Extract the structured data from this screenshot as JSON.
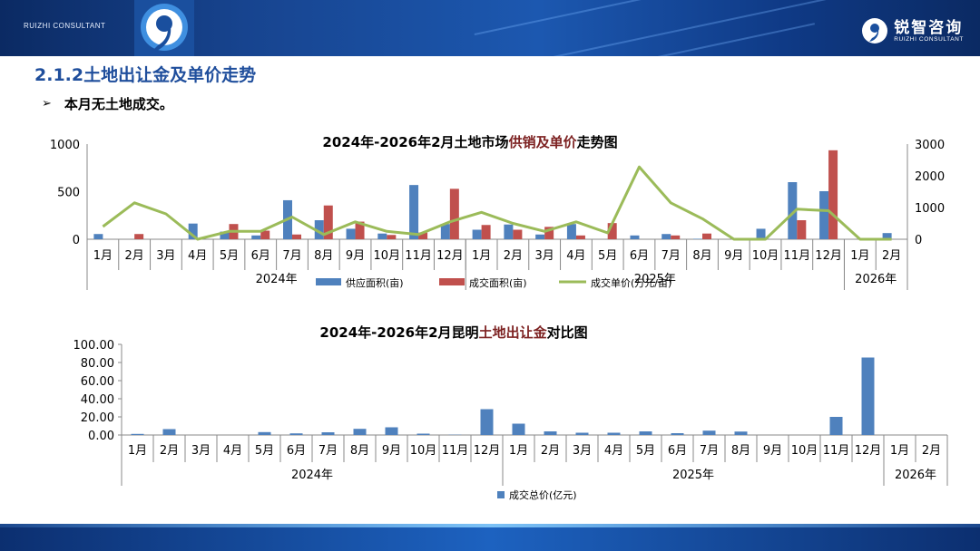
{
  "header": {
    "brand_left": "RUIZHI CONSULTANT",
    "brand_cn": "锐智咨询",
    "brand_en": "RUIZHI CONSULTANT"
  },
  "section_title": "2.1.2土地出让金及单价走势",
  "bullet": "本月无土地成交。",
  "chart_data": [
    {
      "type": "bar",
      "title_parts": [
        "2024年-2026年2月土地市场",
        "供销及单价",
        "走势图"
      ],
      "categories": [
        "1月",
        "2月",
        "3月",
        "4月",
        "5月",
        "6月",
        "7月",
        "8月",
        "9月",
        "10月",
        "11月",
        "12月",
        "1月",
        "2月",
        "3月",
        "4月",
        "5月",
        "6月",
        "7月",
        "8月",
        "9月",
        "10月",
        "11月",
        "12月",
        "1月",
        "2月"
      ],
      "groups": [
        {
          "label": "2024年",
          "count": 12
        },
        {
          "label": "2025年",
          "count": 12
        },
        {
          "label": "2026年",
          "count": 2
        }
      ],
      "series": [
        {
          "name": "供应面积(亩)",
          "type": "bar",
          "axis": "left",
          "color": "#4f81bd",
          "values": [
            55,
            0,
            0,
            165,
            80,
            40,
            410,
            200,
            110,
            60,
            570,
            160,
            100,
            155,
            50,
            160,
            0,
            40,
            55,
            5,
            0,
            110,
            600,
            505,
            0,
            65
          ]
        },
        {
          "name": "成交面积(亩)",
          "type": "bar",
          "axis": "left",
          "color": "#c0504d",
          "values": [
            0,
            55,
            0,
            0,
            160,
            90,
            50,
            355,
            185,
            45,
            70,
            530,
            150,
            100,
            130,
            40,
            170,
            0,
            40,
            60,
            0,
            0,
            200,
            935,
            0,
            0
          ]
        },
        {
          "name": "成交单价(万元/亩)",
          "type": "line",
          "axis": "right",
          "color": "#9bbb59",
          "values": [
            400,
            1150,
            800,
            0,
            250,
            250,
            700,
            150,
            550,
            250,
            150,
            550,
            850,
            500,
            250,
            550,
            200,
            2280,
            1150,
            650,
            0,
            0,
            950,
            900,
            0,
            0
          ]
        }
      ],
      "ylim_left": [
        0,
        1000
      ],
      "yticks_left": [
        "0",
        "500",
        "1000"
      ],
      "ylim_right": [
        0,
        3000
      ],
      "yticks_right": [
        "0",
        "1000",
        "2000",
        "3000"
      ],
      "legend_position": "bottom",
      "grid": false
    },
    {
      "type": "bar",
      "title_parts": [
        "2024年-2026年2月昆明",
        "土地出让金",
        "对比图"
      ],
      "categories": [
        "1月",
        "2月",
        "3月",
        "4月",
        "5月",
        "6月",
        "7月",
        "8月",
        "9月",
        "10月",
        "11月",
        "12月",
        "1月",
        "2月",
        "3月",
        "4月",
        "5月",
        "6月",
        "7月",
        "8月",
        "9月",
        "10月",
        "11月",
        "12月",
        "1月",
        "2月"
      ],
      "groups": [
        {
          "label": "2024年",
          "count": 12
        },
        {
          "label": "2025年",
          "count": 12
        },
        {
          "label": "2026年",
          "count": 2
        }
      ],
      "series": [
        {
          "name": "成交总价(亿元)",
          "type": "bar",
          "color": "#4f81bd",
          "values": [
            1.2,
            6.5,
            0,
            0,
            3.2,
            1.8,
            3.0,
            6.8,
            8.5,
            1.5,
            0.3,
            28.5,
            12.5,
            4.0,
            2.5,
            2.5,
            4.0,
            2.0,
            4.8,
            3.8,
            0,
            0,
            20.0,
            85.5,
            0,
            0
          ]
        }
      ],
      "ylim": [
        0,
        100
      ],
      "yticks": [
        "0.00",
        "20.00",
        "40.00",
        "60.00",
        "80.00",
        "100.00"
      ],
      "legend_position": "bottom",
      "grid": false
    }
  ]
}
